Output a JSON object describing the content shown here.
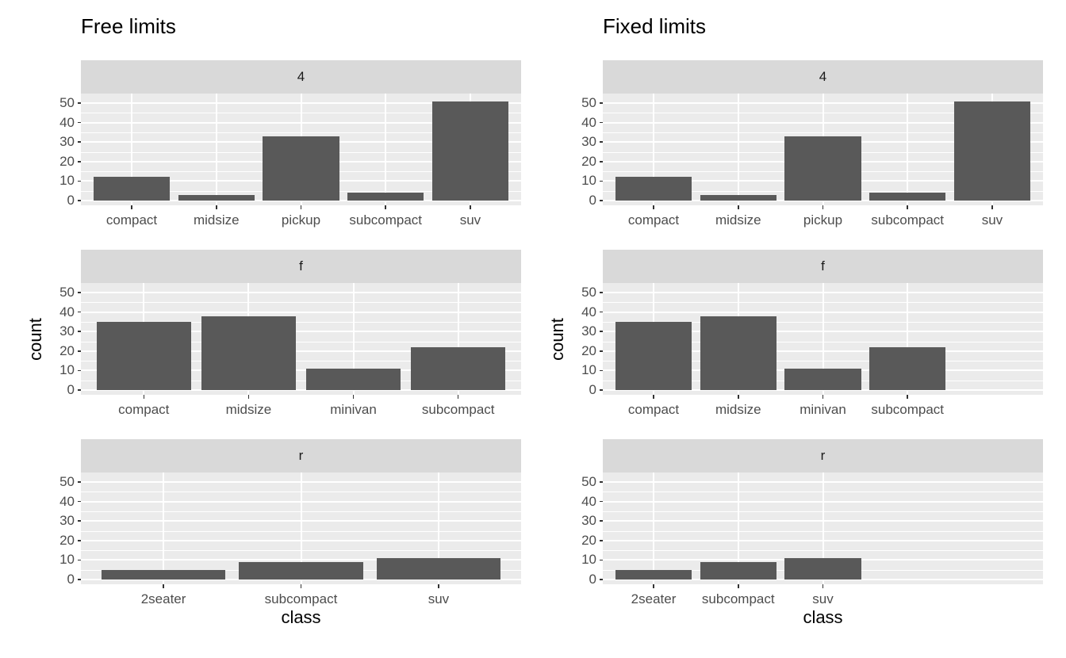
{
  "figure_name": "faceted-bar-charts-free-vs-fixed-limits",
  "colors": {
    "page_background": "#FFFFFF",
    "bar_fill": "#595959",
    "panel_background": "#EBEBEB",
    "strip_background": "#D9D9D9",
    "gridline": "#FFFFFF",
    "axis_text": "#4D4D4D",
    "strip_text": "#1A1A1A",
    "tick_mark": "#333333",
    "title_text": "#000000",
    "axis_title_text": "#000000"
  },
  "chart_data": [
    {
      "type": "bar",
      "title": "Free limits",
      "xlabel": "class",
      "ylabel": "count",
      "x_scale": "free",
      "fixed_slot_count": 5,
      "y_ticks": [
        0,
        10,
        20,
        30,
        40,
        50
      ],
      "y_minor_ticks": [
        5,
        15,
        25,
        35,
        45
      ],
      "ylim": [
        0,
        53.6
      ],
      "grid": "on",
      "legend": "none",
      "facets": [
        {
          "label": "4",
          "categories": [
            "compact",
            "midsize",
            "pickup",
            "subcompact",
            "suv"
          ],
          "values": [
            12,
            3,
            33,
            4,
            51
          ]
        },
        {
          "label": "f",
          "categories": [
            "compact",
            "midsize",
            "minivan",
            "subcompact"
          ],
          "values": [
            35,
            38,
            11,
            22
          ]
        },
        {
          "label": "r",
          "categories": [
            "2seater",
            "subcompact",
            "suv"
          ],
          "values": [
            5,
            9,
            11
          ]
        }
      ]
    },
    {
      "type": "bar",
      "title": "Fixed limits",
      "xlabel": "class",
      "ylabel": "count",
      "x_scale": "fixed",
      "fixed_slot_count": 5,
      "y_ticks": [
        0,
        10,
        20,
        30,
        40,
        50
      ],
      "y_minor_ticks": [
        5,
        15,
        25,
        35,
        45
      ],
      "ylim": [
        0,
        53.6
      ],
      "grid": "on",
      "legend": "none",
      "facets": [
        {
          "label": "4",
          "categories": [
            "compact",
            "midsize",
            "pickup",
            "subcompact",
            "suv"
          ],
          "values": [
            12,
            3,
            33,
            4,
            51
          ]
        },
        {
          "label": "f",
          "categories": [
            "compact",
            "midsize",
            "minivan",
            "subcompact"
          ],
          "values": [
            35,
            38,
            11,
            22
          ]
        },
        {
          "label": "r",
          "categories": [
            "2seater",
            "subcompact",
            "suv"
          ],
          "values": [
            5,
            9,
            11
          ]
        }
      ]
    }
  ]
}
